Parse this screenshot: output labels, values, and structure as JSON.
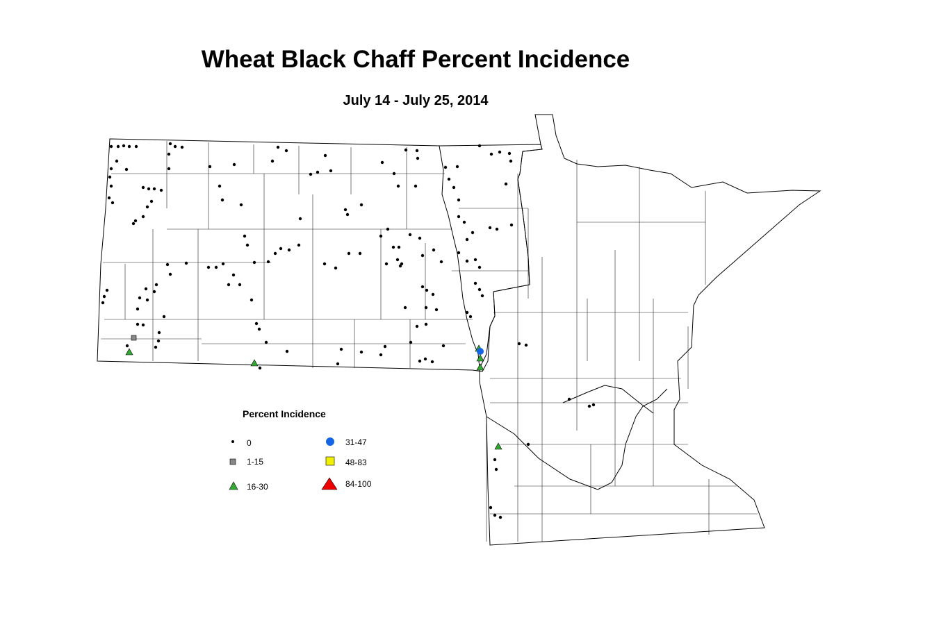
{
  "header": {
    "title": "Wheat Black Chaff Percent Incidence",
    "subtitle": "July 14 - July 25, 2014"
  },
  "legend": {
    "title": "Percent Incidence",
    "items": [
      "0",
      "1-15",
      "16-30",
      "31-47",
      "48-83",
      "84-100"
    ]
  }
}
